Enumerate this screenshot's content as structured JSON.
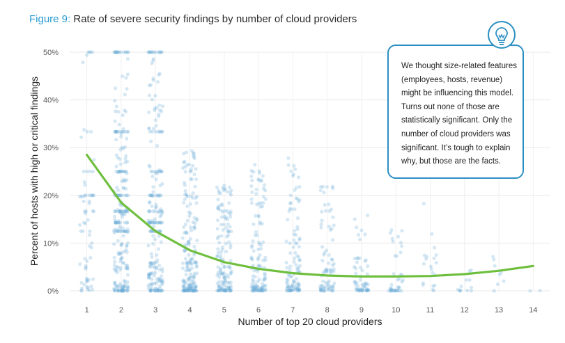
{
  "figure": {
    "number_label": "Figure 9:",
    "title": "Rate of severe security findings by number of cloud providers"
  },
  "callout": {
    "text": "We thought size-related features (employees, hosts, revenue) might be influencing this model. Turns out none of those are statistically significant. Only the number of cloud providers was significant. It’s tough to explain why, but those are the facts.",
    "icon": "lightbulb-icon"
  },
  "colors": {
    "points": "#6aaed6",
    "trend": "#6fbf3f",
    "accent": "#2a9ad1",
    "grid": "#e8e8e8"
  },
  "chart_data": {
    "type": "scatter",
    "xlabel": "Number of top 20 cloud providers",
    "ylabel": "Percent of hosts with high or critical findings",
    "x_ticks": [
      "1",
      "2",
      "3",
      "4",
      "5",
      "6",
      "7",
      "8",
      "9",
      "10",
      "11",
      "12",
      "13",
      "14"
    ],
    "y_ticks": [
      "0%",
      "10%",
      "20%",
      "30%",
      "40%",
      "50%"
    ],
    "xlim": [
      0.5,
      14.5
    ],
    "ylim": [
      0,
      50
    ],
    "grid": true,
    "trend": {
      "x": [
        1,
        2,
        3,
        4,
        5,
        6,
        7,
        8,
        9,
        10,
        11,
        12,
        13,
        14
      ],
      "y": [
        28.5,
        18.5,
        12.5,
        8.5,
        6.0,
        4.6,
        3.7,
        3.2,
        3.0,
        3.0,
        3.1,
        3.5,
        4.2,
        5.2
      ]
    },
    "point_density": {
      "x": [
        1,
        2,
        3,
        4,
        5,
        6,
        7,
        8,
        9,
        10,
        11,
        12,
        13,
        14
      ],
      "counts": [
        70,
        260,
        230,
        190,
        150,
        130,
        110,
        80,
        60,
        40,
        20,
        12,
        8,
        2
      ],
      "max_y": [
        50,
        50,
        50,
        30,
        23,
        27,
        28,
        22,
        18,
        13,
        22,
        7,
        9,
        3
      ]
    }
  }
}
